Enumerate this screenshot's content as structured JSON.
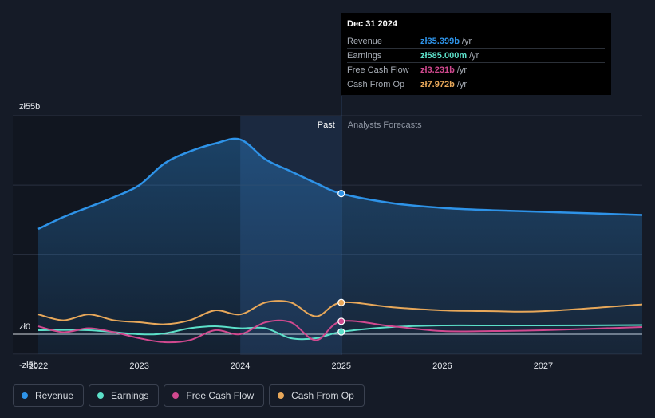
{
  "chart_data": {
    "type": "line",
    "title": "",
    "unit": "zł",
    "y_ticks": [
      {
        "value": 55,
        "label": "zł55b"
      },
      {
        "value": 0,
        "label": "zł0"
      },
      {
        "value": -5,
        "label": "-zł5b"
      }
    ],
    "ylim": [
      -5,
      55
    ],
    "xlim": [
      2022.0,
      2027.98
    ],
    "x_ticks": [
      {
        "value": 2022,
        "label": "2022"
      },
      {
        "value": 2023,
        "label": "2023"
      },
      {
        "value": 2024,
        "label": "2024"
      },
      {
        "value": 2025,
        "label": "2025"
      },
      {
        "value": 2026,
        "label": "2026"
      },
      {
        "value": 2027,
        "label": "2027"
      }
    ],
    "past_label": "Past",
    "forecast_label": "Analysts Forecasts",
    "divider_x": 2025.0,
    "highlight_range": [
      2024.0,
      2025.0
    ],
    "series": [
      {
        "key": "revenue",
        "name": "Revenue",
        "color": "#2e93e8",
        "fill": true,
        "points": [
          [
            2022.0,
            26.5
          ],
          [
            2022.25,
            29.5
          ],
          [
            2022.5,
            32.0
          ],
          [
            2022.75,
            34.5
          ],
          [
            2023.0,
            37.5
          ],
          [
            2023.25,
            43.0
          ],
          [
            2023.5,
            46.0
          ],
          [
            2023.75,
            48.0
          ],
          [
            2024.0,
            49.0
          ],
          [
            2024.25,
            44.0
          ],
          [
            2024.5,
            41.0
          ],
          [
            2024.75,
            38.0
          ],
          [
            2025.0,
            35.4
          ],
          [
            2025.5,
            33.0
          ],
          [
            2026.0,
            31.8
          ],
          [
            2026.5,
            31.2
          ],
          [
            2027.0,
            30.8
          ],
          [
            2027.5,
            30.4
          ],
          [
            2027.98,
            30.0
          ]
        ]
      },
      {
        "key": "earnings",
        "name": "Earnings",
        "color": "#5ce0c9",
        "points": [
          [
            2022.0,
            1.0
          ],
          [
            2022.5,
            1.0
          ],
          [
            2023.0,
            0.0
          ],
          [
            2023.25,
            0.2
          ],
          [
            2023.5,
            1.5
          ],
          [
            2023.75,
            2.0
          ],
          [
            2024.0,
            1.5
          ],
          [
            2024.25,
            1.5
          ],
          [
            2024.5,
            -1.0
          ],
          [
            2024.75,
            -1.0
          ],
          [
            2025.0,
            0.585
          ],
          [
            2025.5,
            1.8
          ],
          [
            2026.0,
            2.2
          ],
          [
            2026.5,
            2.2
          ],
          [
            2027.0,
            2.2
          ],
          [
            2027.98,
            2.3
          ]
        ]
      },
      {
        "key": "fcf",
        "name": "Free Cash Flow",
        "color": "#d1498f",
        "points": [
          [
            2022.0,
            2.0
          ],
          [
            2022.25,
            0.5
          ],
          [
            2022.5,
            1.5
          ],
          [
            2022.75,
            0.5
          ],
          [
            2023.0,
            -1.0
          ],
          [
            2023.25,
            -2.0
          ],
          [
            2023.5,
            -1.5
          ],
          [
            2023.75,
            1.0
          ],
          [
            2024.0,
            0.0
          ],
          [
            2024.25,
            3.0
          ],
          [
            2024.5,
            3.0
          ],
          [
            2024.75,
            -1.5
          ],
          [
            2025.0,
            3.231
          ],
          [
            2025.5,
            2.0
          ],
          [
            2026.0,
            0.8
          ],
          [
            2026.5,
            0.8
          ],
          [
            2027.0,
            1.0
          ],
          [
            2027.98,
            1.8
          ]
        ]
      },
      {
        "key": "cfo",
        "name": "Cash From Op",
        "color": "#e8a85a",
        "points": [
          [
            2022.0,
            5.0
          ],
          [
            2022.25,
            3.5
          ],
          [
            2022.5,
            5.0
          ],
          [
            2022.75,
            3.5
          ],
          [
            2023.0,
            3.0
          ],
          [
            2023.25,
            2.5
          ],
          [
            2023.5,
            3.5
          ],
          [
            2023.75,
            6.0
          ],
          [
            2024.0,
            5.0
          ],
          [
            2024.25,
            8.0
          ],
          [
            2024.5,
            8.0
          ],
          [
            2024.75,
            4.5
          ],
          [
            2025.0,
            7.972
          ],
          [
            2025.5,
            6.8
          ],
          [
            2026.0,
            6.0
          ],
          [
            2026.5,
            5.8
          ],
          [
            2027.0,
            5.8
          ],
          [
            2027.98,
            7.5
          ]
        ]
      }
    ],
    "markers_at": 2025.0
  },
  "tooltip": {
    "date": "Dec 31 2024",
    "rows": [
      {
        "label": "Revenue",
        "value": "zł35.399b",
        "unit": "/yr",
        "color": "#2e93e8"
      },
      {
        "label": "Earnings",
        "value": "zł585.000m",
        "unit": "/yr",
        "color": "#5ce0c9"
      },
      {
        "label": "Free Cash Flow",
        "value": "zł3.231b",
        "unit": "/yr",
        "color": "#d1498f"
      },
      {
        "label": "Cash From Op",
        "value": "zł7.972b",
        "unit": "/yr",
        "color": "#e8a85a"
      }
    ]
  },
  "legend": [
    {
      "label": "Revenue",
      "color": "#2e93e8"
    },
    {
      "label": "Earnings",
      "color": "#5ce0c9"
    },
    {
      "label": "Free Cash Flow",
      "color": "#d1498f"
    },
    {
      "label": "Cash From Op",
      "color": "#e8a85a"
    }
  ]
}
